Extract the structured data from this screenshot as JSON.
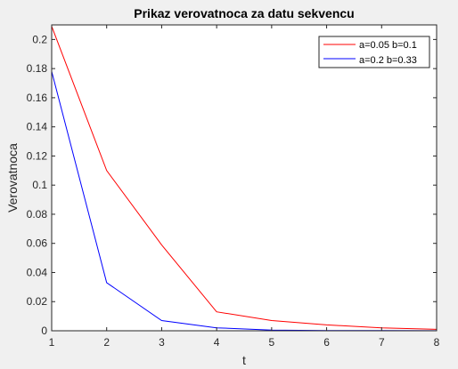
{
  "chart_data": {
    "type": "line",
    "title": "Prikaz verovatnoca za datu sekvencu",
    "xlabel": "t",
    "ylabel": "Verovatnoca",
    "xlim": [
      1,
      8
    ],
    "ylim": [
      0,
      0.21
    ],
    "x": [
      1,
      2,
      3,
      4,
      5,
      6,
      7,
      8
    ],
    "x_ticks": [
      "1",
      "2",
      "3",
      "4",
      "5",
      "6",
      "7",
      "8"
    ],
    "y_ticks": [
      0,
      0.02,
      0.04,
      0.06,
      0.08,
      0.1,
      0.12,
      0.14,
      0.16,
      0.18,
      0.2
    ],
    "y_tick_labels": [
      "0",
      "0.02",
      "0.04",
      "0.06",
      "0.08",
      "0.1",
      "0.12",
      "0.14",
      "0.16",
      "0.18",
      "0.2"
    ],
    "grid": false,
    "legend_position": "top-right",
    "series": [
      {
        "name": "a=0.05 b=0.1",
        "color": "#ff0000",
        "values": [
          0.209,
          0.11,
          0.059,
          0.013,
          0.007,
          0.004,
          0.002,
          0.001
        ]
      },
      {
        "name": "a=0.2 b=0.33",
        "color": "#0000ff",
        "values": [
          0.178,
          0.033,
          0.007,
          0.002,
          0.0005,
          0.0002,
          0.0001,
          5e-05
        ]
      }
    ]
  }
}
